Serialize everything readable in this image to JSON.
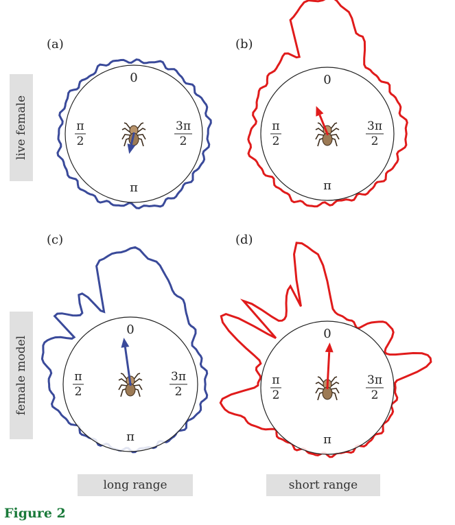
{
  "rows": [
    {
      "label": "live female"
    },
    {
      "label": "female model"
    }
  ],
  "columns": [
    {
      "label": "long range",
      "color": "#3a4a9a"
    },
    {
      "label": "short range",
      "color": "#e01b1b"
    }
  ],
  "panels": [
    {
      "letter": "(a)",
      "row": 0,
      "col": 0,
      "arrow_angle_deg": 193,
      "arrow_length": 0.3
    },
    {
      "letter": "(b)",
      "row": 0,
      "col": 1,
      "arrow_angle_deg": -22,
      "arrow_length": 0.45
    },
    {
      "letter": "(c)",
      "row": 1,
      "col": 0,
      "arrow_angle_deg": -8,
      "arrow_length": 0.7
    },
    {
      "letter": "(d)",
      "row": 1,
      "col": 1,
      "arrow_angle_deg": 3,
      "arrow_length": 0.68
    }
  ],
  "angle_labels": {
    "top": "0",
    "bottom": "π",
    "left_num": "π",
    "left_den": "2",
    "right_num": "3π",
    "right_den": "2"
  },
  "figure_caption": "Figure 2"
}
